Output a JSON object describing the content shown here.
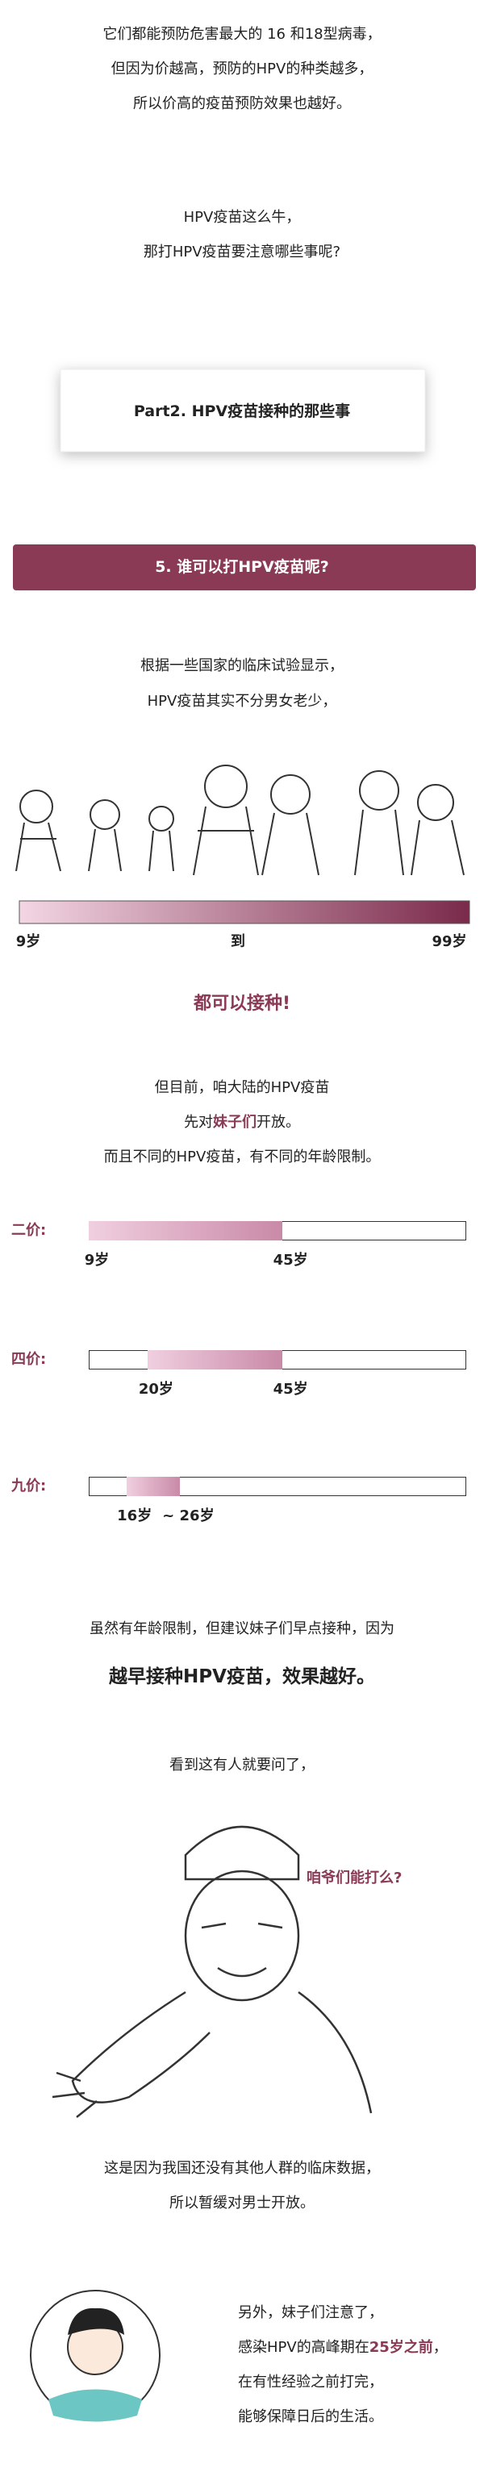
{
  "intro": [
    "它们都能预防危害最大的 16 和18型病毒，",
    "但因为价越高，预防的HPV的种类越多，",
    "所以价高的疫苗预防效果也越好。"
  ],
  "question": [
    "HPV疫苗这么牛，",
    "那打HPV疫苗要注意哪些事呢?"
  ],
  "part_box": "Part2. HPV疫苗接种的那些事",
  "section_banner": "5. 谁可以打HPV疫苗呢?",
  "clinical": [
    "根据一些国家的临床试验显示，",
    "HPV疫苗其实不分男女老少，"
  ],
  "age_range": {
    "start": "9岁",
    "middle": "到",
    "end": "99岁"
  },
  "all_can": "都可以接种!",
  "mainland": [
    [
      "但目前，咱大陆的HPV疫苗"
    ],
    [
      "先对",
      "妹子们",
      "开放。"
    ],
    [
      "而且不同的HPV疫苗，有不同的年龄限制。"
    ]
  ],
  "vaccines": [
    {
      "name": "二价:",
      "from": {
        "value": 9,
        "label": "9岁"
      },
      "to": {
        "value": 45,
        "label": "45岁"
      }
    },
    {
      "name": "四价:",
      "from": {
        "value": 20,
        "label": "20岁"
      },
      "to": {
        "value": 45,
        "label": "45岁"
      }
    },
    {
      "name": "九价:",
      "from": {
        "value": 16,
        "label": "16岁"
      },
      "to": {
        "value": 26,
        "label": "~ 26岁"
      }
    }
  ],
  "advice": [
    "虽然有年龄限制，但建议妹子们早点接种，因为",
    "越早接种HPV疫苗，效果越好。"
  ],
  "asked": "看到这有人就要问了，",
  "speech": "咱爷们能打么?",
  "reason": [
    "这是因为我国还没有其他人群的临床数据，",
    "所以暂缓对男士开放。"
  ],
  "note": [
    [
      "另外，妹子们注意了，"
    ],
    [
      "感染HPV的高峰期在",
      "25岁之前",
      "，"
    ],
    [
      "在有性经验之前打完，"
    ],
    [
      "能够保障日后的生活。"
    ]
  ]
}
